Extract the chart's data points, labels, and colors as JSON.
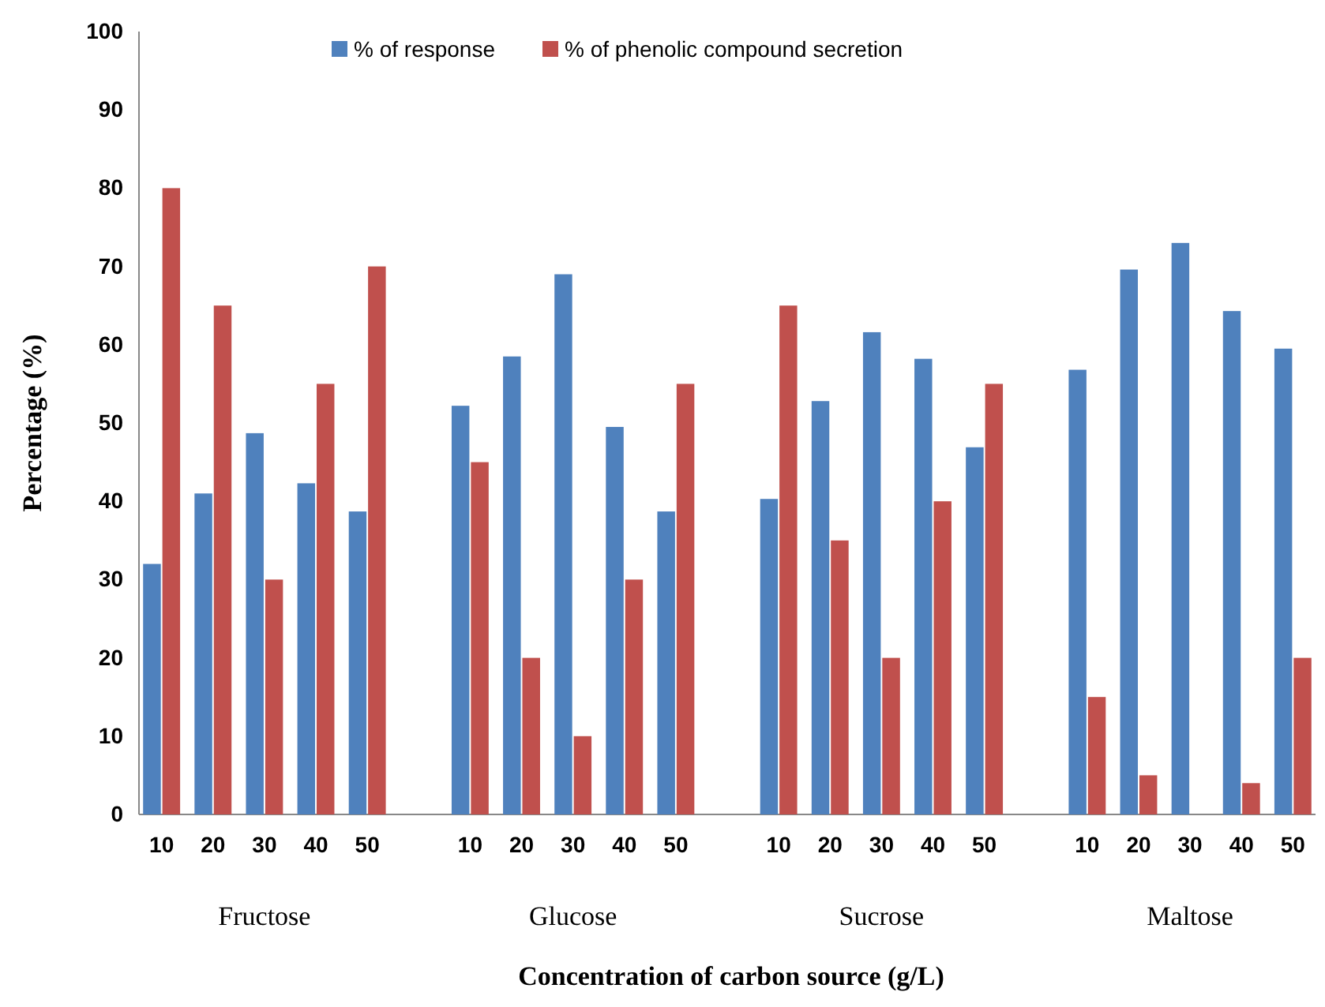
{
  "chart_data": {
    "type": "bar",
    "xlabel": "Concentration of carbon source (g/L)",
    "ylabel": "Percentage (%)",
    "categories": [
      "10",
      "20",
      "30",
      "40",
      "50",
      null,
      "10",
      "20",
      "30",
      "40",
      "50",
      null,
      "10",
      "20",
      "30",
      "40",
      "50",
      null,
      "10",
      "20",
      "30",
      "40",
      "50"
    ],
    "series": [
      {
        "name": "% of response",
        "color": "#4f81bd",
        "values": [
          32,
          41,
          48.7,
          42.3,
          38.7,
          null,
          52.2,
          58.5,
          69,
          49.5,
          38.7,
          null,
          40.3,
          52.8,
          61.6,
          58.2,
          46.9,
          null,
          56.8,
          69.6,
          73,
          64.3,
          59.5
        ]
      },
      {
        "name": "% of phenolic compound secretion",
        "color": "#c0504d",
        "values": [
          80,
          65,
          30,
          55,
          70,
          null,
          45,
          20,
          10,
          30,
          55,
          null,
          65,
          35,
          20,
          40,
          55,
          null,
          15,
          5,
          null,
          4,
          20
        ]
      }
    ],
    "annotations": [
      "Fructose",
      "Glucose",
      "Sucrose",
      "Maltose"
    ],
    "ylim": [
      0,
      100
    ],
    "yticks": [
      0,
      10,
      20,
      30,
      40,
      50,
      60,
      70,
      80,
      90,
      100
    ],
    "legend": "top"
  }
}
